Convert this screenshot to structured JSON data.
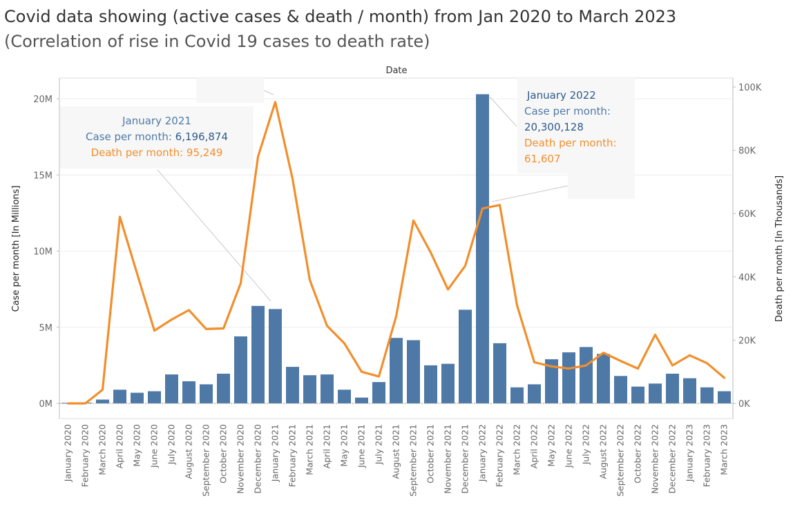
{
  "header": {
    "title": "Covid data showing (active cases & death / month) from Jan 2020 to March 2023",
    "subtitle": "(Correlation of rise in Covid 19 cases to death rate)",
    "x_header": "Date"
  },
  "colors": {
    "cases_bar": "#4e79a7",
    "deaths_line": "#f28e2b",
    "callout_bg": "#f7f7f7"
  },
  "callouts": [
    {
      "id": "jan2021",
      "title": "January 2021",
      "case_label": "Case per month:",
      "case_value": "6,196,874",
      "death_label": "Death per  month:",
      "death_value": "95,249"
    },
    {
      "id": "jan2022",
      "title": "January 2022",
      "case_label": "Case per month:",
      "case_value": "20,300,128",
      "death_label": "Death per month:",
      "death_value": "61,607"
    }
  ],
  "chart_data": {
    "type": "bar",
    "title": "Covid data showing (active cases & death / month) from Jan 2020 to March 2023",
    "subtitle": "(Correlation of rise in Covid 19 cases to death rate)",
    "x_header": "Date",
    "ylabel": "Case per month [In Millions]",
    "y2label": "Death per month [In Thousands]",
    "ylim": [
      0,
      21000000
    ],
    "y2lim": [
      0,
      100000
    ],
    "yticks": [
      "0M",
      "5M",
      "10M",
      "15M",
      "20M"
    ],
    "y2ticks": [
      "0K",
      "20K",
      "40K",
      "60K",
      "80K",
      "100K"
    ],
    "grid": true,
    "categories": [
      "January 2020",
      "February 2020",
      "March 2020",
      "April 2020",
      "May 2020",
      "June 2020",
      "July 2020",
      "August 2020",
      "September 2020",
      "October 2020",
      "November 2020",
      "December 2020",
      "January 2021",
      "February 2021",
      "March 2021",
      "April 2021",
      "May 2021",
      "June 2021",
      "July 2021",
      "August 2021",
      "September 2021",
      "October 2021",
      "November 2021",
      "December 2021",
      "January 2022",
      "February 2022",
      "March 2022",
      "April 2022",
      "May 2022",
      "June 2022",
      "July 2022",
      "August 2022",
      "September 2022",
      "October 2022",
      "November 2022",
      "December 2022",
      "January 2023",
      "February 2023",
      "March 2023"
    ],
    "series": [
      {
        "name": "Case per month",
        "type": "bar",
        "axis": "left",
        "values": [
          10000,
          50000,
          250000,
          900000,
          700000,
          800000,
          1900000,
          1450000,
          1250000,
          1950000,
          4400000,
          6400000,
          6196874,
          2400000,
          1850000,
          1900000,
          900000,
          380000,
          1400000,
          4300000,
          4150000,
          2500000,
          2600000,
          6150000,
          20300128,
          3950000,
          1050000,
          1250000,
          2900000,
          3350000,
          3700000,
          3250000,
          1800000,
          1100000,
          1300000,
          1950000,
          1650000,
          1050000,
          800000
        ]
      },
      {
        "name": "Death per month",
        "type": "line",
        "axis": "right",
        "values": [
          0,
          0,
          4300,
          59000,
          41000,
          23000,
          26500,
          29500,
          23500,
          23700,
          38000,
          78000,
          95249,
          71000,
          39000,
          24500,
          19000,
          10000,
          8500,
          27500,
          57800,
          47700,
          36000,
          43500,
          61607,
          62700,
          31000,
          13000,
          11700,
          11000,
          12000,
          16000,
          13400,
          11000,
          21700,
          12000,
          15200,
          12700,
          8100
        ]
      }
    ]
  }
}
